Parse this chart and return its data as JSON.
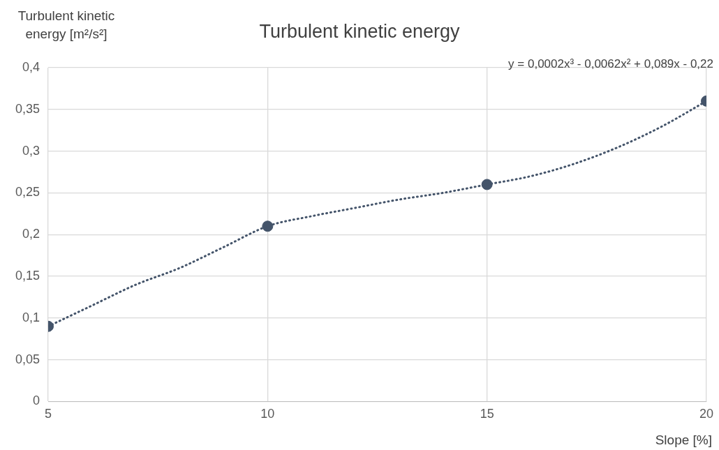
{
  "chart_data": {
    "type": "scatter",
    "title": "Turbulent kinetic energy",
    "xlabel": "Slope [%]",
    "ylabel": "Turbulent kinetic energy [m²/s²]",
    "annotations": [
      "y = 0,0002x³ - 0,0062x² + 0,089x - 0,22"
    ],
    "series": [
      {
        "type": "scatter",
        "color": "#44546a",
        "x": [
          5,
          10,
          15,
          20
        ],
        "values": [
          0.09,
          0.21,
          0.26,
          0.36
        ],
        "marker": "circle"
      },
      {
        "type": "line",
        "color": "#44546a",
        "line_style": "dotted",
        "marker": "none",
        "x": [
          5,
          6,
          7,
          8,
          9,
          10,
          11,
          12,
          13,
          14,
          15,
          16,
          17,
          18,
          19,
          20
        ],
        "values": [
          0.09,
          0.115,
          0.14,
          0.16,
          0.185,
          0.21,
          0.222,
          0.232,
          0.242,
          0.25,
          0.26,
          0.27,
          0.285,
          0.305,
          0.33,
          0.36
        ]
      }
    ],
    "xlim": [
      5,
      20
    ],
    "xticks": [
      5,
      10,
      15,
      20
    ],
    "ylim": [
      0,
      0.4
    ],
    "yticks": [
      0,
      {
        "value": 0.05,
        "label": "0,05"
      },
      {
        "value": 0.1,
        "label": "0,1"
      },
      {
        "value": 0.15,
        "label": "0,15"
      },
      {
        "value": 0.2,
        "label": "0,2"
      },
      {
        "value": 0.25,
        "label": "0,25"
      },
      {
        "value": 0.3,
        "label": "0,3"
      },
      {
        "value": 0.35,
        "label": "0,35"
      },
      {
        "value": 0.4,
        "label": "0,4"
      }
    ],
    "grid": true,
    "legend": false
  }
}
